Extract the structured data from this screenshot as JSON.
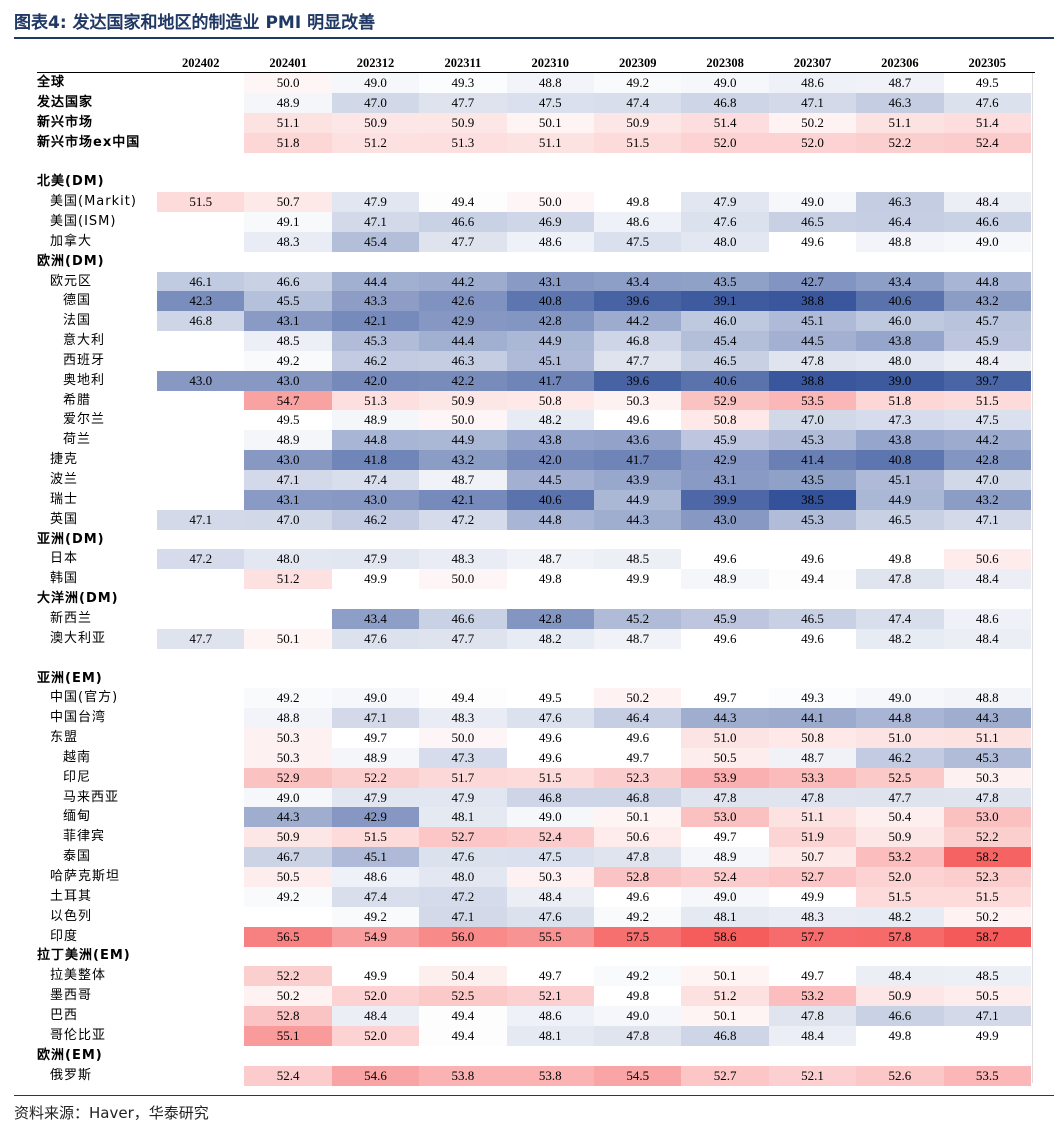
{
  "title": "图表4:   发达国家和地区的制造业 PMI 明显改善",
  "source": "资料来源：Haver，华泰研究",
  "chart_data": {
    "type": "heatmap",
    "columns": [
      "202402",
      "202401",
      "202312",
      "202311",
      "202310",
      "202309",
      "202308",
      "202307",
      "202306",
      "202305"
    ],
    "rows": [
      {
        "label": "全球",
        "bold": true,
        "values": [
          null,
          50.0,
          49.0,
          49.3,
          48.8,
          49.2,
          49.0,
          48.6,
          48.7,
          49.5
        ]
      },
      {
        "label": "发达国家",
        "bold": true,
        "values": [
          null,
          48.9,
          47.0,
          47.7,
          47.5,
          47.4,
          46.8,
          47.1,
          46.3,
          47.6
        ]
      },
      {
        "label": "新兴市场",
        "bold": true,
        "values": [
          null,
          51.1,
          50.9,
          50.9,
          50.1,
          50.9,
          51.4,
          50.2,
          51.1,
          51.4
        ]
      },
      {
        "label": "新兴市场ex中国",
        "bold": true,
        "values": [
          null,
          51.8,
          51.2,
          51.3,
          51.1,
          51.5,
          52.0,
          52.0,
          52.2,
          52.4
        ]
      },
      {
        "label": "",
        "spacer": true,
        "values": []
      },
      {
        "label": "北美(DM)",
        "bold": true,
        "values": []
      },
      {
        "label": "美国(Markit)",
        "indent": 1,
        "values": [
          51.5,
          50.7,
          47.9,
          49.4,
          50.0,
          49.8,
          47.9,
          49.0,
          46.3,
          48.4
        ]
      },
      {
        "label": "美国(ISM)",
        "indent": 1,
        "values": [
          null,
          49.1,
          47.1,
          46.6,
          46.9,
          48.6,
          47.6,
          46.5,
          46.4,
          46.6
        ]
      },
      {
        "label": "加拿大",
        "indent": 1,
        "values": [
          null,
          48.3,
          45.4,
          47.7,
          48.6,
          47.5,
          48.0,
          49.6,
          48.8,
          49.0
        ]
      },
      {
        "label": "欧洲(DM)",
        "bold": true,
        "values": []
      },
      {
        "label": "欧元区",
        "indent": 1,
        "values": [
          46.1,
          46.6,
          44.4,
          44.2,
          43.1,
          43.4,
          43.5,
          42.7,
          43.4,
          44.8
        ]
      },
      {
        "label": "德国",
        "indent": 2,
        "values": [
          42.3,
          45.5,
          43.3,
          42.6,
          40.8,
          39.6,
          39.1,
          38.8,
          40.6,
          43.2
        ]
      },
      {
        "label": "法国",
        "indent": 2,
        "values": [
          46.8,
          43.1,
          42.1,
          42.9,
          42.8,
          44.2,
          46.0,
          45.1,
          46.0,
          45.7
        ]
      },
      {
        "label": "意大利",
        "indent": 2,
        "values": [
          null,
          48.5,
          45.3,
          44.4,
          44.9,
          46.8,
          45.4,
          44.5,
          43.8,
          45.9
        ]
      },
      {
        "label": "西班牙",
        "indent": 2,
        "values": [
          null,
          49.2,
          46.2,
          46.3,
          45.1,
          47.7,
          46.5,
          47.8,
          48.0,
          48.4
        ]
      },
      {
        "label": "奥地利",
        "indent": 2,
        "values": [
          43.0,
          43.0,
          42.0,
          42.2,
          41.7,
          39.6,
          40.6,
          38.8,
          39.0,
          39.7
        ]
      },
      {
        "label": "希腊",
        "indent": 2,
        "values": [
          null,
          54.7,
          51.3,
          50.9,
          50.8,
          50.3,
          52.9,
          53.5,
          51.8,
          51.5
        ]
      },
      {
        "label": "爱尔兰",
        "indent": 2,
        "values": [
          null,
          49.5,
          48.9,
          50.0,
          48.2,
          49.6,
          50.8,
          47.0,
          47.3,
          47.5
        ]
      },
      {
        "label": "荷兰",
        "indent": 2,
        "values": [
          null,
          48.9,
          44.8,
          44.9,
          43.8,
          43.6,
          45.9,
          45.3,
          43.8,
          44.2
        ]
      },
      {
        "label": "捷克",
        "indent": 1,
        "values": [
          null,
          43.0,
          41.8,
          43.2,
          42.0,
          41.7,
          42.9,
          41.4,
          40.8,
          42.8
        ]
      },
      {
        "label": "波兰",
        "indent": 1,
        "values": [
          null,
          47.1,
          47.4,
          48.7,
          44.5,
          43.9,
          43.1,
          43.5,
          45.1,
          47.0
        ]
      },
      {
        "label": "瑞士",
        "indent": 1,
        "values": [
          null,
          43.1,
          43.0,
          42.1,
          40.6,
          44.9,
          39.9,
          38.5,
          44.9,
          43.2
        ]
      },
      {
        "label": "英国",
        "indent": 1,
        "values": [
          47.1,
          47.0,
          46.2,
          47.2,
          44.8,
          44.3,
          43.0,
          45.3,
          46.5,
          47.1
        ]
      },
      {
        "label": "亚洲(DM)",
        "bold": true,
        "values": []
      },
      {
        "label": "日本",
        "indent": 1,
        "values": [
          47.2,
          48.0,
          47.9,
          48.3,
          48.7,
          48.5,
          49.6,
          49.6,
          49.8,
          50.6
        ]
      },
      {
        "label": "韩国",
        "indent": 1,
        "values": [
          null,
          51.2,
          49.9,
          50.0,
          49.8,
          49.9,
          48.9,
          49.4,
          47.8,
          48.4
        ]
      },
      {
        "label": "大洋洲(DM)",
        "bold": true,
        "values": []
      },
      {
        "label": "新西兰",
        "indent": 1,
        "values": [
          null,
          null,
          43.4,
          46.6,
          42.8,
          45.2,
          45.9,
          46.5,
          47.4,
          48.6
        ]
      },
      {
        "label": "澳大利亚",
        "indent": 1,
        "values": [
          47.7,
          50.1,
          47.6,
          47.7,
          48.2,
          48.7,
          49.6,
          49.6,
          48.2,
          48.4
        ]
      },
      {
        "label": "",
        "spacer": true,
        "values": []
      },
      {
        "label": "亚洲(EM)",
        "bold": true,
        "values": []
      },
      {
        "label": "中国(官方)",
        "indent": 1,
        "values": [
          null,
          49.2,
          49.0,
          49.4,
          49.5,
          50.2,
          49.7,
          49.3,
          49.0,
          48.8
        ]
      },
      {
        "label": "中国台湾",
        "indent": 1,
        "values": [
          null,
          48.8,
          47.1,
          48.3,
          47.6,
          46.4,
          44.3,
          44.1,
          44.8,
          44.3
        ]
      },
      {
        "label": "东盟",
        "indent": 1,
        "values": [
          null,
          50.3,
          49.7,
          50.0,
          49.6,
          49.6,
          51.0,
          50.8,
          51.0,
          51.1
        ]
      },
      {
        "label": "越南",
        "indent": 2,
        "values": [
          null,
          50.3,
          48.9,
          47.3,
          49.6,
          49.7,
          50.5,
          48.7,
          46.2,
          45.3
        ]
      },
      {
        "label": "印尼",
        "indent": 2,
        "values": [
          null,
          52.9,
          52.2,
          51.7,
          51.5,
          52.3,
          53.9,
          53.3,
          52.5,
          50.3
        ]
      },
      {
        "label": "马来西亚",
        "indent": 2,
        "values": [
          null,
          49.0,
          47.9,
          47.9,
          46.8,
          46.8,
          47.8,
          47.8,
          47.7,
          47.8
        ]
      },
      {
        "label": "缅甸",
        "indent": 2,
        "values": [
          null,
          44.3,
          42.9,
          48.1,
          49.0,
          50.1,
          53.0,
          51.1,
          50.4,
          53.0
        ]
      },
      {
        "label": "菲律宾",
        "indent": 2,
        "values": [
          null,
          50.9,
          51.5,
          52.7,
          52.4,
          50.6,
          49.7,
          51.9,
          50.9,
          52.2
        ]
      },
      {
        "label": "泰国",
        "indent": 2,
        "values": [
          null,
          46.7,
          45.1,
          47.6,
          47.5,
          47.8,
          48.9,
          50.7,
          53.2,
          58.2
        ]
      },
      {
        "label": "哈萨克斯坦",
        "indent": 1,
        "values": [
          null,
          50.5,
          48.6,
          48.0,
          50.3,
          52.8,
          52.4,
          52.7,
          52.0,
          52.3
        ]
      },
      {
        "label": "土耳其",
        "indent": 1,
        "values": [
          null,
          49.2,
          47.4,
          47.2,
          48.4,
          49.6,
          49.0,
          49.9,
          51.5,
          51.5
        ]
      },
      {
        "label": "以色列",
        "indent": 1,
        "values": [
          null,
          null,
          49.2,
          47.1,
          47.6,
          49.2,
          48.1,
          48.3,
          48.2,
          50.2
        ]
      },
      {
        "label": "印度",
        "indent": 1,
        "values": [
          null,
          56.5,
          54.9,
          56.0,
          55.5,
          57.5,
          58.6,
          57.7,
          57.8,
          58.7
        ]
      },
      {
        "label": "拉丁美洲(EM)",
        "bold": true,
        "values": []
      },
      {
        "label": "拉美整体",
        "indent": 1,
        "values": [
          null,
          52.2,
          49.9,
          50.4,
          49.7,
          49.2,
          50.1,
          49.7,
          48.4,
          48.5
        ]
      },
      {
        "label": "墨西哥",
        "indent": 1,
        "values": [
          null,
          50.2,
          52.0,
          52.5,
          52.1,
          49.8,
          51.2,
          53.2,
          50.9,
          50.5
        ]
      },
      {
        "label": "巴西",
        "indent": 1,
        "values": [
          null,
          52.8,
          48.4,
          49.4,
          48.6,
          49.0,
          50.1,
          47.8,
          46.6,
          47.1
        ]
      },
      {
        "label": "哥伦比亚",
        "indent": 1,
        "values": [
          null,
          55.1,
          52.0,
          49.4,
          48.1,
          47.8,
          46.8,
          48.4,
          49.8,
          49.9
        ]
      },
      {
        "label": "欧洲(EM)",
        "bold": true,
        "values": []
      },
      {
        "label": "俄罗斯",
        "indent": 1,
        "values": [
          null,
          52.4,
          54.6,
          53.8,
          53.8,
          54.5,
          52.7,
          52.1,
          52.6,
          53.5
        ]
      }
    ]
  }
}
